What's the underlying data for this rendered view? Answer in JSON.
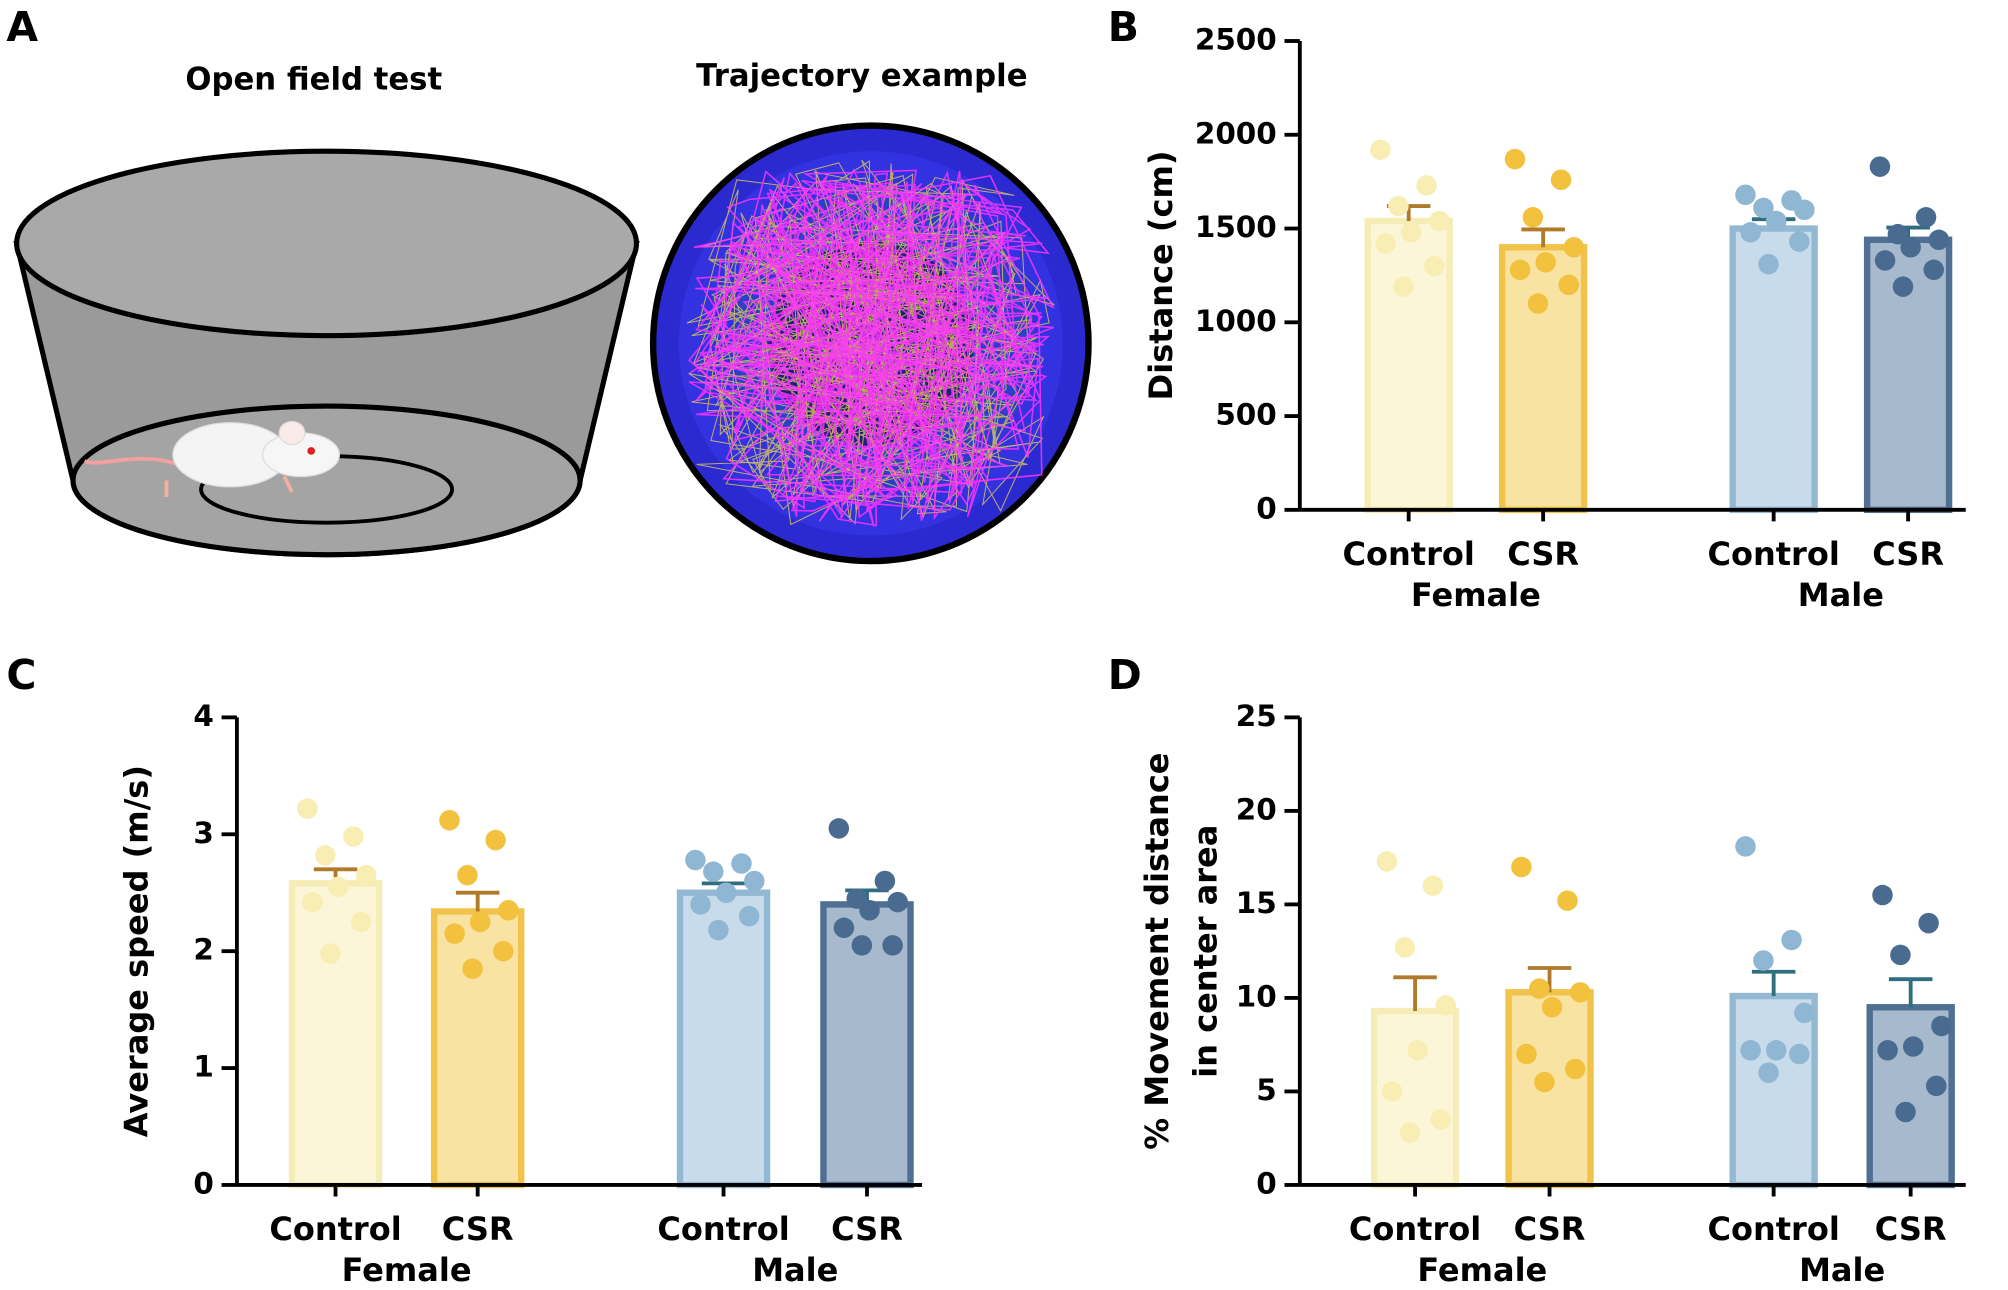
{
  "panel_a": {
    "label": "A",
    "titles": [
      "Open field test",
      "Trajectory example"
    ]
  },
  "chart_data": [
    {
      "type": "bar",
      "panel": "B",
      "ylabel": "Distance (cm)",
      "categories": [
        "Control",
        "CSR",
        "Control",
        "CSR"
      ],
      "groups": [
        "Female",
        "Male"
      ],
      "values": [
        1540,
        1400,
        1500,
        1440
      ],
      "errors": [
        80,
        95,
        50,
        65
      ],
      "points": [
        [
          1920,
          1730,
          1620,
          1540,
          1480,
          1420,
          1300,
          1190
        ],
        [
          1870,
          1760,
          1560,
          1400,
          1320,
          1280,
          1200,
          1100
        ],
        [
          1680,
          1650,
          1610,
          1600,
          1540,
          1480,
          1430,
          1310
        ],
        [
          1830,
          1560,
          1470,
          1440,
          1400,
          1330,
          1280,
          1190
        ]
      ],
      "fill_colors": [
        "#fcf6d8",
        "#f9e3a3",
        "#c8dbea",
        "#a6b9cd"
      ],
      "stroke_colors": [
        "#f6ecb5",
        "#f2c24a",
        "#93b8d4",
        "#4f6f93"
      ],
      "point_colors": [
        "#f8eeb4",
        "#f2c23f",
        "#8fb6d3",
        "#4a6b90"
      ],
      "error_colors": [
        "#b07a2a",
        "#b07a2a",
        "#2f6e7e",
        "#2f6e7e"
      ],
      "ylim": [
        0,
        2500
      ],
      "yticks": [
        0,
        500,
        1000,
        1500,
        2000,
        2500
      ]
    },
    {
      "type": "bar",
      "panel": "C",
      "ylabel": "Average speed (m/s)",
      "categories": [
        "Control",
        "CSR",
        "Control",
        "CSR"
      ],
      "groups": [
        "Female",
        "Male"
      ],
      "values": [
        2.58,
        2.34,
        2.5,
        2.4
      ],
      "errors": [
        0.12,
        0.16,
        0.08,
        0.12
      ],
      "points": [
        [
          3.22,
          2.98,
          2.82,
          2.65,
          2.55,
          2.42,
          2.25,
          1.98
        ],
        [
          3.12,
          2.95,
          2.65,
          2.35,
          2.25,
          2.15,
          2.0,
          1.85
        ],
        [
          2.78,
          2.75,
          2.68,
          2.6,
          2.5,
          2.4,
          2.3,
          2.18
        ],
        [
          3.05,
          2.6,
          2.45,
          2.42,
          2.35,
          2.2,
          2.05,
          2.05
        ]
      ],
      "fill_colors": [
        "#fcf6d8",
        "#f9e3a3",
        "#c8dbea",
        "#a6b9cd"
      ],
      "stroke_colors": [
        "#f6ecb5",
        "#f2c24a",
        "#93b8d4",
        "#4f6f93"
      ],
      "point_colors": [
        "#f8eeb4",
        "#f2c23f",
        "#8fb6d3",
        "#4a6b90"
      ],
      "error_colors": [
        "#b07a2a",
        "#b07a2a",
        "#2f6e7e",
        "#2f6e7e"
      ],
      "ylim": [
        0,
        4
      ],
      "yticks": [
        0,
        1,
        2,
        3,
        4
      ]
    },
    {
      "type": "bar",
      "panel": "D",
      "ylabel": [
        "% Movement distance",
        "in center area"
      ],
      "categories": [
        "Control",
        "CSR",
        "Control",
        "CSR"
      ],
      "groups": [
        "Female",
        "Male"
      ],
      "values": [
        9.3,
        10.3,
        10.1,
        9.5
      ],
      "errors": [
        1.8,
        1.3,
        1.3,
        1.5
      ],
      "points": [
        [
          17.3,
          16.0,
          12.7,
          9.6,
          7.2,
          5.0,
          3.5,
          2.8
        ],
        [
          17.0,
          15.2,
          10.5,
          10.3,
          9.5,
          7.0,
          6.2,
          5.5
        ],
        [
          18.1,
          13.1,
          12.0,
          9.2,
          7.2,
          7.2,
          7.0,
          6.0
        ],
        [
          15.5,
          14.0,
          12.3,
          8.5,
          7.4,
          7.2,
          5.3,
          3.9
        ]
      ],
      "fill_colors": [
        "#fcf6d8",
        "#f9e3a3",
        "#c8dbea",
        "#a6b9cd"
      ],
      "stroke_colors": [
        "#f6ecb5",
        "#f2c24a",
        "#93b8d4",
        "#4f6f93"
      ],
      "point_colors": [
        "#f8eeb4",
        "#f2c23f",
        "#8fb6d3",
        "#4a6b90"
      ],
      "error_colors": [
        "#b07a2a",
        "#b07a2a",
        "#2f6e7e",
        "#2f6e7e"
      ],
      "ylim": [
        0,
        25
      ],
      "yticks": [
        0,
        5,
        10,
        15,
        20,
        25
      ]
    }
  ]
}
